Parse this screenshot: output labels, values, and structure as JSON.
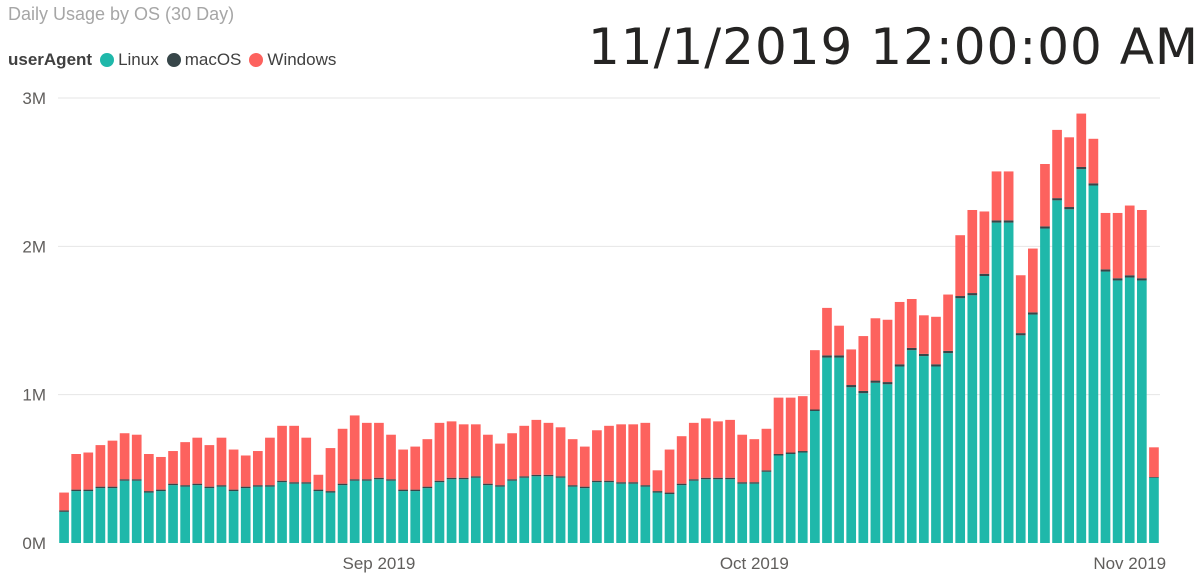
{
  "title": "Daily Usage by OS (30 Day)",
  "timestamp": "11/1/2019 12:00:00 AM",
  "legend": {
    "title": "userAgent",
    "items": [
      {
        "label": "Linux",
        "color": "#1fb8aa"
      },
      {
        "label": "macOS",
        "color": "#374649"
      },
      {
        "label": "Windows",
        "color": "#fd625e"
      }
    ]
  },
  "chart_data": {
    "type": "bar",
    "stacked": true,
    "title": "Daily Usage by OS (30 Day)",
    "xlabel": "",
    "ylabel": "",
    "ylim": [
      0,
      3000000
    ],
    "y_ticks": [
      {
        "value": 0,
        "label": "0M"
      },
      {
        "value": 1000000,
        "label": "1M"
      },
      {
        "value": 2000000,
        "label": "2M"
      },
      {
        "value": 3000000,
        "label": "3M"
      }
    ],
    "x_ticks": [
      {
        "index": 26,
        "label": "Sep 2019"
      },
      {
        "index": 57,
        "label": "Oct 2019"
      },
      {
        "index": 88,
        "label": "Nov 2019"
      }
    ],
    "grid": true,
    "legend_position": "top-left",
    "series": [
      {
        "name": "Linux",
        "color": "#1fb8aa",
        "values": [
          210000,
          350000,
          350000,
          370000,
          370000,
          420000,
          420000,
          340000,
          350000,
          390000,
          380000,
          390000,
          370000,
          380000,
          350000,
          370000,
          380000,
          380000,
          410000,
          400000,
          400000,
          350000,
          340000,
          390000,
          420000,
          420000,
          430000,
          420000,
          350000,
          350000,
          370000,
          410000,
          430000,
          430000,
          440000,
          390000,
          380000,
          420000,
          440000,
          450000,
          450000,
          440000,
          380000,
          370000,
          410000,
          410000,
          400000,
          400000,
          380000,
          340000,
          330000,
          390000,
          420000,
          430000,
          430000,
          430000,
          400000,
          400000,
          480000,
          590000,
          600000,
          610000,
          890000,
          1250000,
          1250000,
          1050000,
          1010000,
          1080000,
          1070000,
          1190000,
          1300000,
          1260000,
          1190000,
          1280000,
          1650000,
          1670000,
          1800000,
          2160000,
          2160000,
          1400000,
          1540000,
          2120000,
          2310000,
          2250000,
          2520000,
          2410000,
          1830000,
          1770000,
          1790000,
          1770000,
          440000
        ]
      },
      {
        "name": "macOS",
        "color": "#374649",
        "values": [
          10000,
          10000,
          10000,
          10000,
          10000,
          10000,
          10000,
          10000,
          10000,
          10000,
          10000,
          10000,
          10000,
          10000,
          10000,
          10000,
          10000,
          10000,
          10000,
          10000,
          10000,
          10000,
          10000,
          10000,
          10000,
          10000,
          10000,
          10000,
          10000,
          10000,
          10000,
          10000,
          10000,
          10000,
          10000,
          10000,
          10000,
          10000,
          10000,
          10000,
          10000,
          10000,
          10000,
          10000,
          10000,
          10000,
          10000,
          10000,
          10000,
          10000,
          10000,
          10000,
          10000,
          10000,
          10000,
          10000,
          10000,
          10000,
          10000,
          10000,
          10000,
          10000,
          10000,
          15000,
          15000,
          15000,
          15000,
          15000,
          15000,
          15000,
          15000,
          15000,
          15000,
          15000,
          15000,
          15000,
          15000,
          15000,
          15000,
          15000,
          15000,
          15000,
          15000,
          15000,
          15000,
          15000,
          15000,
          15000,
          15000,
          15000,
          5000
        ]
      },
      {
        "name": "Windows",
        "color": "#fd625e",
        "values": [
          120000,
          240000,
          250000,
          280000,
          310000,
          310000,
          300000,
          250000,
          220000,
          220000,
          290000,
          310000,
          280000,
          320000,
          270000,
          210000,
          230000,
          320000,
          370000,
          380000,
          300000,
          100000,
          290000,
          370000,
          430000,
          380000,
          370000,
          300000,
          270000,
          290000,
          320000,
          390000,
          380000,
          360000,
          350000,
          330000,
          280000,
          310000,
          340000,
          370000,
          350000,
          330000,
          310000,
          270000,
          340000,
          370000,
          390000,
          390000,
          420000,
          140000,
          290000,
          320000,
          380000,
          400000,
          380000,
          390000,
          320000,
          290000,
          280000,
          380000,
          370000,
          370000,
          400000,
          320000,
          200000,
          240000,
          370000,
          420000,
          420000,
          420000,
          330000,
          260000,
          320000,
          380000,
          410000,
          560000,
          420000,
          330000,
          330000,
          390000,
          430000,
          420000,
          460000,
          470000,
          360000,
          300000,
          380000,
          440000,
          470000,
          460000,
          200000
        ]
      }
    ]
  }
}
